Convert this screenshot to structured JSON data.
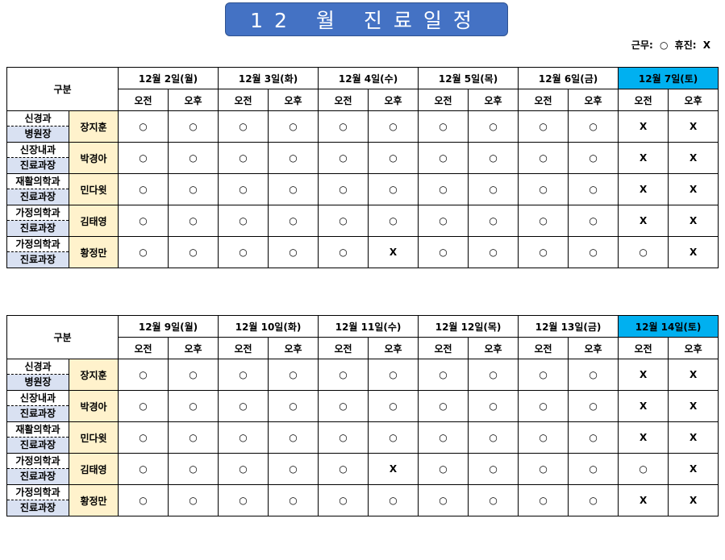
{
  "title": "12 월 진료일정",
  "legend": {
    "work_label": "근무:",
    "work_symbol": "○",
    "off_label": "휴진:",
    "off_symbol": "X"
  },
  "tables": [
    {
      "header_label": "구분",
      "dates": [
        "12월 2일(월)",
        "12월 3일(화)",
        "12월 4일(수)",
        "12월 5일(목)",
        "12월 6일(금)",
        "12월 7일(토)"
      ],
      "am": "오전",
      "pm": "오후",
      "rows": [
        {
          "dept": "신경과",
          "title": "병원장",
          "doctor": "장지훈",
          "marks": [
            "○",
            "○",
            "○",
            "○",
            "○",
            "○",
            "○",
            "○",
            "○",
            "○",
            "X",
            "X"
          ]
        },
        {
          "dept": "신장내과",
          "title": "진료과장",
          "doctor": "박경아",
          "marks": [
            "○",
            "○",
            "○",
            "○",
            "○",
            "○",
            "○",
            "○",
            "○",
            "○",
            "X",
            "X"
          ]
        },
        {
          "dept": "재활의학과",
          "title": "진료과장",
          "doctor": "민다윗",
          "marks": [
            "○",
            "○",
            "○",
            "○",
            "○",
            "○",
            "○",
            "○",
            "○",
            "○",
            "X",
            "X"
          ]
        },
        {
          "dept": "가정의학과",
          "title": "진료과장",
          "doctor": "김태영",
          "marks": [
            "○",
            "○",
            "○",
            "○",
            "○",
            "○",
            "○",
            "○",
            "○",
            "○",
            "X",
            "X"
          ]
        },
        {
          "dept": "가정의학과",
          "title": "진료과장",
          "doctor": "황정만",
          "marks": [
            "○",
            "○",
            "○",
            "○",
            "○",
            "X",
            "○",
            "○",
            "○",
            "○",
            "○",
            "X"
          ]
        }
      ]
    },
    {
      "header_label": "구분",
      "dates": [
        "12월 9일(월)",
        "12월 10일(화)",
        "12월 11일(수)",
        "12월 12일(목)",
        "12월 13일(금)",
        "12월 14일(토)"
      ],
      "am": "오전",
      "pm": "오후",
      "rows": [
        {
          "dept": "신경과",
          "title": "병원장",
          "doctor": "장지훈",
          "marks": [
            "○",
            "○",
            "○",
            "○",
            "○",
            "○",
            "○",
            "○",
            "○",
            "○",
            "X",
            "X"
          ]
        },
        {
          "dept": "신장내과",
          "title": "진료과장",
          "doctor": "박경아",
          "marks": [
            "○",
            "○",
            "○",
            "○",
            "○",
            "○",
            "○",
            "○",
            "○",
            "○",
            "X",
            "X"
          ]
        },
        {
          "dept": "재활의학과",
          "title": "진료과장",
          "doctor": "민다윗",
          "marks": [
            "○",
            "○",
            "○",
            "○",
            "○",
            "○",
            "○",
            "○",
            "○",
            "○",
            "X",
            "X"
          ]
        },
        {
          "dept": "가정의학과",
          "title": "진료과장",
          "doctor": "김태영",
          "marks": [
            "○",
            "○",
            "○",
            "○",
            "○",
            "X",
            "○",
            "○",
            "○",
            "○",
            "○",
            "X"
          ]
        },
        {
          "dept": "가정의학과",
          "title": "진료과장",
          "doctor": "황정만",
          "marks": [
            "○",
            "○",
            "○",
            "○",
            "○",
            "○",
            "○",
            "○",
            "○",
            "○",
            "X",
            "X"
          ]
        }
      ]
    }
  ],
  "colors": {
    "title_bg": "#4472c4",
    "saturday_header": "#00b0f0",
    "doctor_bg": "#fff2cc",
    "title_cell_bg": "#d9e1f2"
  }
}
